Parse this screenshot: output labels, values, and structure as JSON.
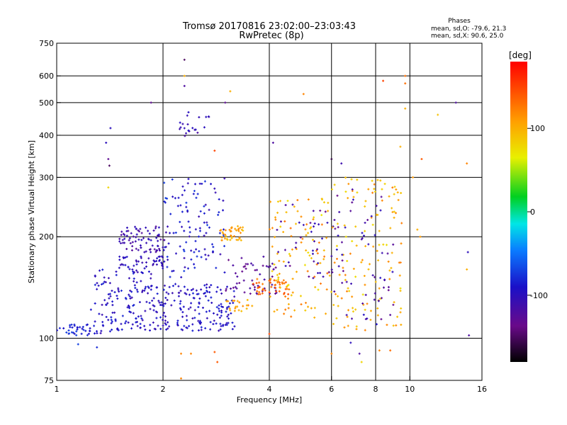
{
  "chart_data": {
    "type": "scatter",
    "title": "Tromsø 20170816 23:02:00–23:03:43",
    "subtitle": "RwPretec (8p)",
    "xlabel": "Frequency [MHz]",
    "ylabel": "Stationary phase Virtual Height [km]",
    "x_scale": "log",
    "y_scale": "log",
    "xlim": [
      1,
      16
    ],
    "ylim": [
      75,
      750
    ],
    "x_ticks": [
      1,
      2,
      4,
      6,
      8,
      10,
      16
    ],
    "x_tick_labels": [
      "1",
      "2",
      "4",
      "6",
      "8",
      "10",
      "16"
    ],
    "x_grid": [
      2,
      4,
      6,
      8,
      10
    ],
    "y_ticks": [
      75,
      100,
      200,
      300,
      400,
      500,
      600,
      750
    ],
    "y_tick_labels": [
      "75",
      "100",
      "200",
      "300",
      "400",
      "500",
      "600",
      "750"
    ],
    "y_grid": [
      100,
      200,
      300,
      400,
      500,
      600
    ],
    "grid": true,
    "phases_note": {
      "heading": "Phases",
      "line1": "mean, sd,O: -79.6, 21.3",
      "line2": "mean, sd,X:  90.6, 25.0"
    },
    "colorbar": {
      "label": "[deg]",
      "range": [
        -180,
        180
      ],
      "ticks": [
        100,
        0,
        -100
      ],
      "tick_labels": [
        "100",
        "0",
        "-100"
      ],
      "colormap": "rainbow (black-purple-blue-cyan-green-yellow-orange-red)"
    },
    "series": [
      {
        "clusters": [
          {
            "x": [
              1.0,
              1.25
            ],
            "y": [
              102,
              110
            ],
            "phase": [
              -70,
              -95
            ],
            "n": 35
          },
          {
            "x": [
              1.25,
              1.9
            ],
            "y": [
              103,
              160
            ],
            "phase": [
              -80,
              -110
            ],
            "n": 150
          },
          {
            "x": [
              1.5,
              2.05
            ],
            "y": [
              180,
              215
            ],
            "phase": [
              -95,
              -125
            ],
            "n": 80
          },
          {
            "x": [
              1.5,
              2.0
            ],
            "y": [
              160,
              175
            ],
            "phase": [
              -90,
              -110
            ],
            "n": 45
          },
          {
            "x": [
              1.9,
              3.2
            ],
            "y": [
              105,
              145
            ],
            "phase": [
              -80,
              -110
            ],
            "n": 170
          },
          {
            "x": [
              2.0,
              3.0
            ],
            "y": [
              150,
              300
            ],
            "phase": [
              -70,
              -110
            ],
            "n": 110
          },
          {
            "x": [
              2.2,
              2.7
            ],
            "y": [
              395,
              470
            ],
            "phase": [
              -90,
              -120
            ],
            "n": 22
          },
          {
            "x": [
              2.9,
              3.4
            ],
            "y": [
              195,
              215
            ],
            "phase": [
              85,
              120
            ],
            "n": 40
          },
          {
            "x": [
              3.0,
              3.6
            ],
            "y": [
              120,
              130
            ],
            "phase": [
              90,
              120
            ],
            "n": 20
          },
          {
            "x": [
              3.0,
              4.2
            ],
            "y": [
              135,
              175
            ],
            "phase": [
              -110,
              -140
            ],
            "n": 55
          },
          {
            "x": [
              3.6,
              4.6
            ],
            "y": [
              135,
              150
            ],
            "phase": [
              120,
              145
            ],
            "n": 40
          },
          {
            "x": [
              4.0,
              6.0
            ],
            "y": [
              115,
              260
            ],
            "phase": [
              70,
              130
            ],
            "n": 110
          },
          {
            "x": [
              4.2,
              6.5
            ],
            "y": [
              150,
              250
            ],
            "phase": [
              -100,
              -140
            ],
            "n": 45
          },
          {
            "x": [
              6.0,
              9.5
            ],
            "y": [
              105,
              300
            ],
            "phase": [
              75,
              125
            ],
            "n": 130
          },
          {
            "x": [
              6.0,
              9.0
            ],
            "y": [
              110,
              280
            ],
            "phase": [
              -90,
              -140
            ],
            "n": 55
          }
        ],
        "outliers": [
          {
            "x": 1.42,
            "y": 420,
            "phase": -100
          },
          {
            "x": 1.38,
            "y": 380,
            "phase": -100
          },
          {
            "x": 1.4,
            "y": 340,
            "phase": -130
          },
          {
            "x": 1.41,
            "y": 325,
            "phase": -150
          },
          {
            "x": 1.4,
            "y": 280,
            "phase": 80
          },
          {
            "x": 1.85,
            "y": 500,
            "phase": -130
          },
          {
            "x": 2.3,
            "y": 670,
            "phase": -150
          },
          {
            "x": 2.3,
            "y": 600,
            "phase": 100
          },
          {
            "x": 2.3,
            "y": 560,
            "phase": -120
          },
          {
            "x": 2.25,
            "y": 90,
            "phase": 120
          },
          {
            "x": 2.4,
            "y": 90,
            "phase": 120
          },
          {
            "x": 2.25,
            "y": 76,
            "phase": 120
          },
          {
            "x": 2.8,
            "y": 360,
            "phase": 150
          },
          {
            "x": 3.1,
            "y": 540,
            "phase": 100
          },
          {
            "x": 3.0,
            "y": 500,
            "phase": -130
          },
          {
            "x": 2.8,
            "y": 91,
            "phase": 140
          },
          {
            "x": 2.85,
            "y": 85,
            "phase": 140
          },
          {
            "x": 4.1,
            "y": 380,
            "phase": -120
          },
          {
            "x": 4.0,
            "y": 103,
            "phase": 150
          },
          {
            "x": 5.0,
            "y": 530,
            "phase": 120
          },
          {
            "x": 6.0,
            "y": 340,
            "phase": -160
          },
          {
            "x": 6.0,
            "y": 90,
            "phase": 120
          },
          {
            "x": 6.4,
            "y": 330,
            "phase": -110
          },
          {
            "x": 6.8,
            "y": 97,
            "phase": -100
          },
          {
            "x": 7.2,
            "y": 90,
            "phase": -120
          },
          {
            "x": 7.3,
            "y": 85,
            "phase": 80
          },
          {
            "x": 8.4,
            "y": 580,
            "phase": 150
          },
          {
            "x": 8.2,
            "y": 92,
            "phase": 120
          },
          {
            "x": 8.8,
            "y": 92,
            "phase": 130
          },
          {
            "x": 9.7,
            "y": 600,
            "phase": 130
          },
          {
            "x": 9.7,
            "y": 570,
            "phase": 130
          },
          {
            "x": 9.7,
            "y": 480,
            "phase": 100
          },
          {
            "x": 9.4,
            "y": 370,
            "phase": 100
          },
          {
            "x": 10.8,
            "y": 340,
            "phase": 140
          },
          {
            "x": 10.2,
            "y": 300,
            "phase": 110
          },
          {
            "x": 10.7,
            "y": 200,
            "phase": 110
          },
          {
            "x": 10.5,
            "y": 210,
            "phase": 100
          },
          {
            "x": 12.0,
            "y": 460,
            "phase": 90
          },
          {
            "x": 13.5,
            "y": 500,
            "phase": -120
          },
          {
            "x": 14.5,
            "y": 330,
            "phase": 120
          },
          {
            "x": 14.6,
            "y": 180,
            "phase": -100
          },
          {
            "x": 14.5,
            "y": 160,
            "phase": 100
          },
          {
            "x": 14.7,
            "y": 102,
            "phase": -120
          },
          {
            "x": 1.15,
            "y": 96,
            "phase": -70
          },
          {
            "x": 1.3,
            "y": 94,
            "phase": -80
          }
        ]
      }
    ]
  }
}
